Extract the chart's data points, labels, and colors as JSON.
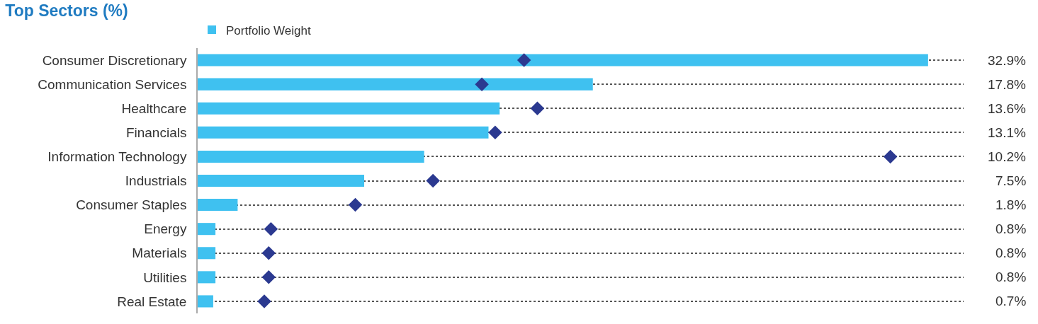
{
  "chart_data": {
    "type": "bar",
    "orientation": "horizontal",
    "title": "Top Sectors (%)",
    "categories": [
      "Consumer Discretionary",
      "Communication Services",
      "Healthcare",
      "Financials",
      "Information Technology",
      "Industrials",
      "Consumer Staples",
      "Energy",
      "Materials",
      "Utilities",
      "Real Estate"
    ],
    "series": [
      {
        "name": "Portfolio Weight",
        "color": "#3fc1f0",
        "values": [
          32.9,
          17.8,
          13.6,
          13.1,
          10.2,
          7.5,
          1.8,
          0.8,
          0.8,
          0.8,
          0.7
        ],
        "value_labels": [
          "32.9%",
          "17.8%",
          "13.6%",
          "13.1%",
          "10.2%",
          "7.5%",
          "1.8%",
          "0.8%",
          "0.8%",
          "0.8%",
          "0.7%"
        ]
      },
      {
        "type": "scatter",
        "marker": "diamond",
        "color": "#2b3990",
        "values": [
          14.7,
          12.8,
          15.3,
          13.4,
          31.2,
          10.6,
          7.1,
          3.3,
          3.2,
          3.2,
          3.0
        ]
      }
    ],
    "xlim": [
      0,
      34.5
    ],
    "tick_labels": "y",
    "grid": "y",
    "legend": "top left"
  }
}
